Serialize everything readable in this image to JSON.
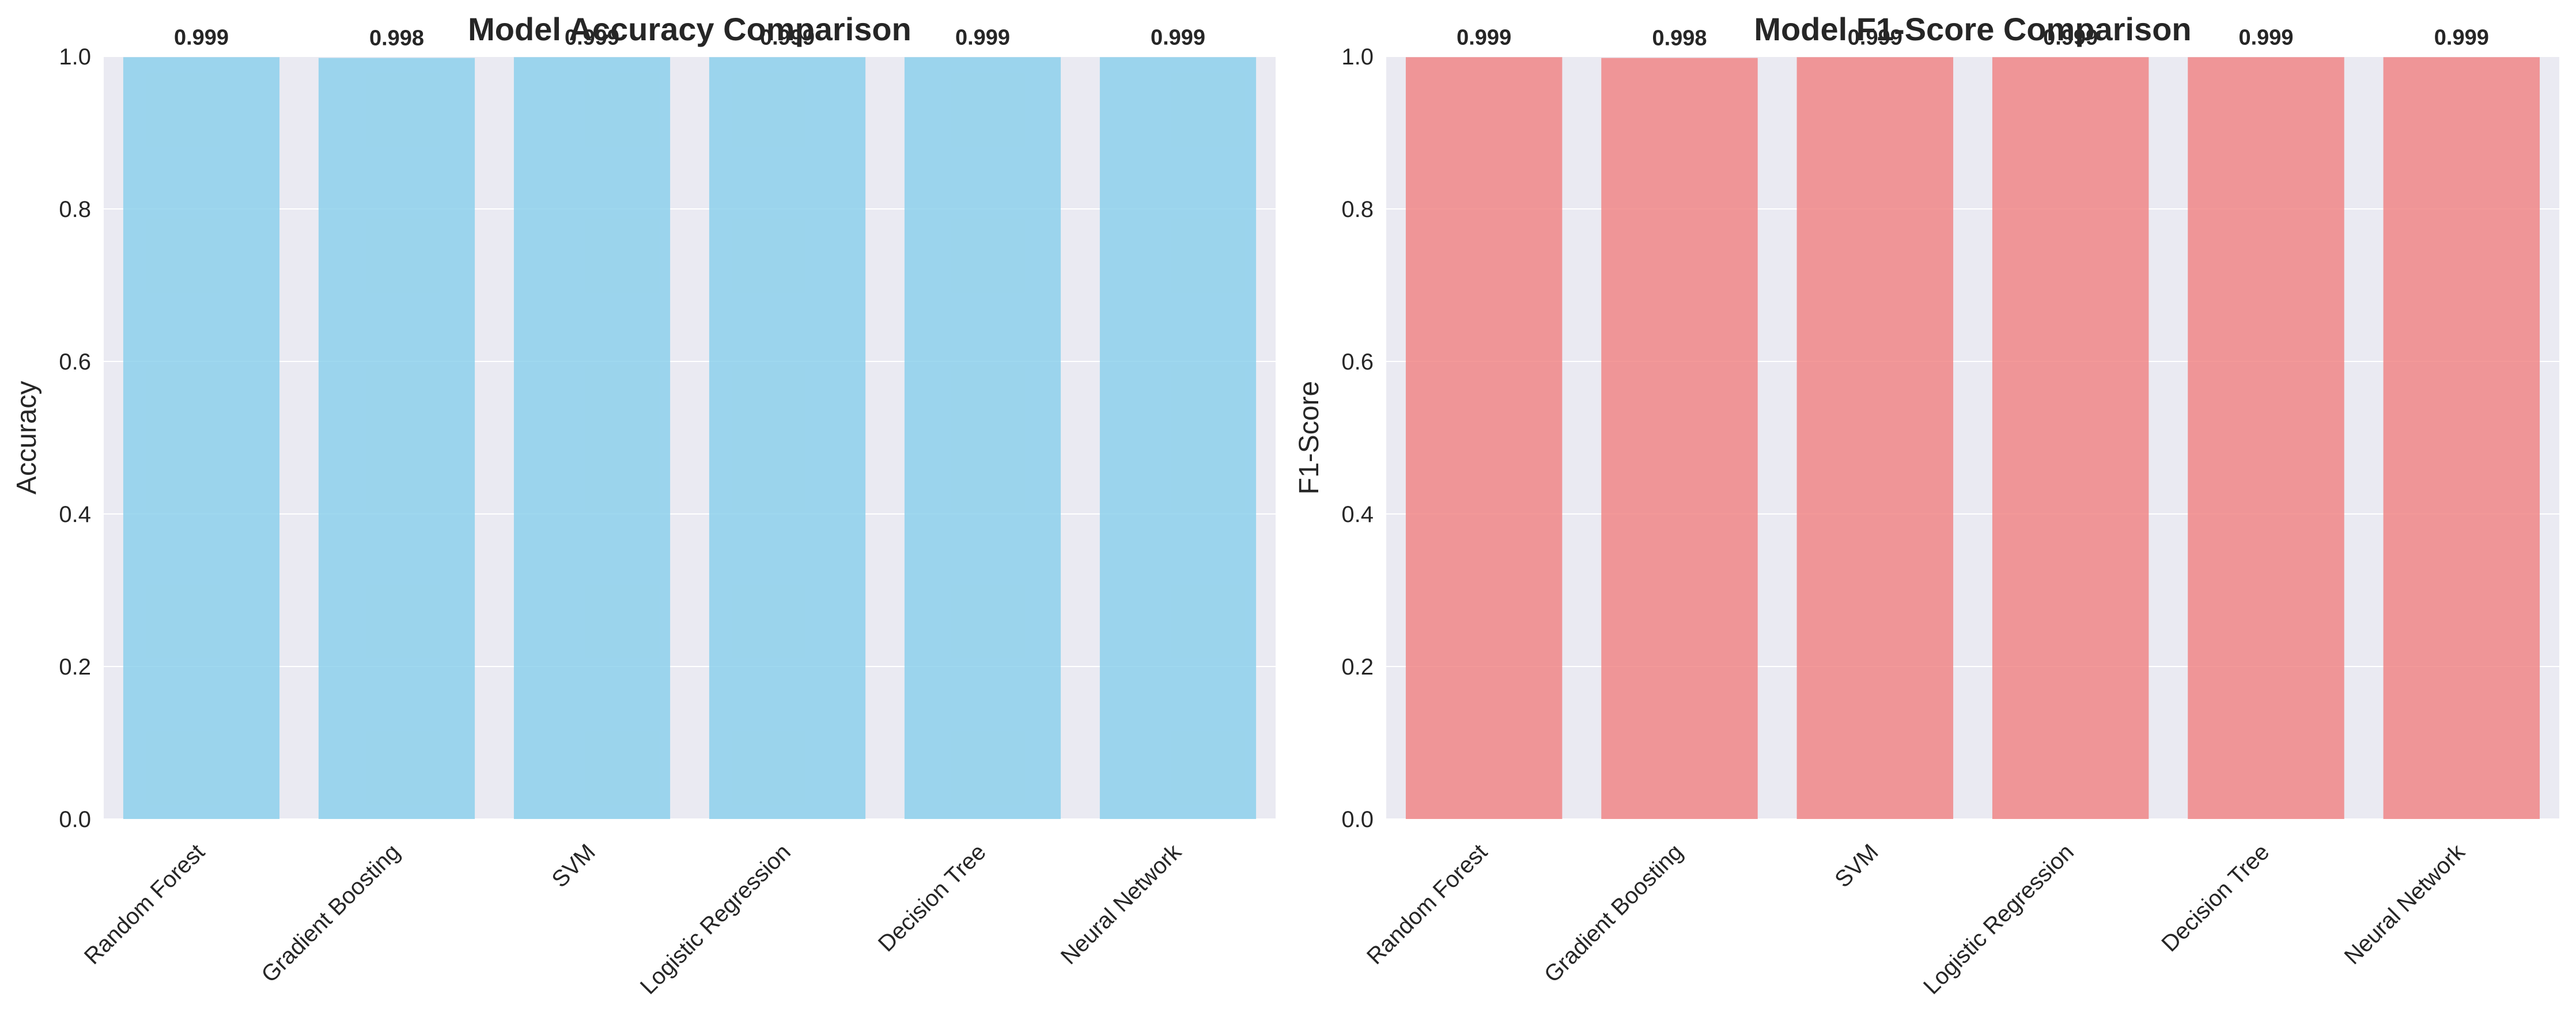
{
  "chart_data": [
    {
      "type": "bar",
      "title": "Model Accuracy Comparison",
      "xlabel": "",
      "ylabel": "Accuracy",
      "categories": [
        "Random Forest",
        "Gradient Boosting",
        "SVM",
        "Logistic Regression",
        "Decision Tree",
        "Neural Network"
      ],
      "values": [
        0.999,
        0.998,
        0.999,
        0.999,
        0.999,
        0.999
      ],
      "value_labels": [
        "0.999",
        "0.998",
        "0.999",
        "0.999",
        "0.999",
        "0.999"
      ],
      "ylim": [
        0,
        1.0
      ],
      "yticks": [
        "0.0",
        "0.2",
        "0.4",
        "0.6",
        "0.8",
        "1.0"
      ],
      "bar_color": "#87ceeb",
      "grid": true,
      "background": "#eaeaf2"
    },
    {
      "type": "bar",
      "title": "Model F1-Score Comparison",
      "xlabel": "",
      "ylabel": "F1-Score",
      "categories": [
        "Random Forest",
        "Gradient Boosting",
        "SVM",
        "Logistic Regression",
        "Decision Tree",
        "Neural Network"
      ],
      "values": [
        0.999,
        0.998,
        0.999,
        0.999,
        0.999,
        0.999
      ],
      "value_labels": [
        "0.999",
        "0.998",
        "0.999",
        "0.999",
        "0.999",
        "0.999"
      ],
      "ylim": [
        0,
        1.0
      ],
      "yticks": [
        "0.0",
        "0.2",
        "0.4",
        "0.6",
        "0.8",
        "1.0"
      ],
      "bar_color": "#f08080",
      "grid": true,
      "background": "#eaeaf2"
    }
  ]
}
